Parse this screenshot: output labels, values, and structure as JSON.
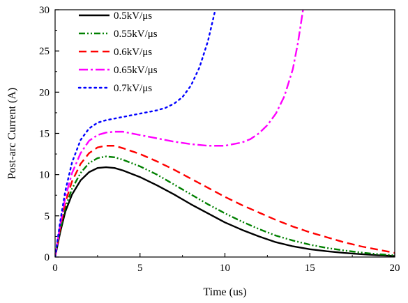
{
  "chart_data": {
    "type": "line",
    "title": "",
    "xlabel": "Time (us)",
    "ylabel": "Post-arc Current (A)",
    "xlim": [
      0,
      20
    ],
    "ylim": [
      0,
      30
    ],
    "x_ticks": [
      0,
      5,
      10,
      15,
      20
    ],
    "y_ticks": [
      0,
      5,
      10,
      15,
      20,
      25,
      30
    ],
    "grid": false,
    "legend_position": "top-left",
    "series": [
      {
        "name": "0.5kV/μs",
        "color": "#000000",
        "line_style": "solid",
        "points": [
          [
            0,
            0
          ],
          [
            0.3,
            3.0
          ],
          [
            0.6,
            5.5
          ],
          [
            1.0,
            7.6
          ],
          [
            1.5,
            9.3
          ],
          [
            2.0,
            10.3
          ],
          [
            2.5,
            10.8
          ],
          [
            3.0,
            10.9
          ],
          [
            3.5,
            10.8
          ],
          [
            4.0,
            10.5
          ],
          [
            5.0,
            9.7
          ],
          [
            6.0,
            8.7
          ],
          [
            7.0,
            7.6
          ],
          [
            8.0,
            6.4
          ],
          [
            9.0,
            5.3
          ],
          [
            10.0,
            4.2
          ],
          [
            11.0,
            3.3
          ],
          [
            12.0,
            2.5
          ],
          [
            13.0,
            1.8
          ],
          [
            14.0,
            1.3
          ],
          [
            15.0,
            0.95
          ],
          [
            16.0,
            0.7
          ],
          [
            17.0,
            0.5
          ],
          [
            18.0,
            0.35
          ],
          [
            19.0,
            0.22
          ],
          [
            20.0,
            0.12
          ]
        ]
      },
      {
        "name": "0.55kV/μs",
        "color": "#008000",
        "line_style": "dash-dot-dot",
        "points": [
          [
            0,
            0
          ],
          [
            0.3,
            3.3
          ],
          [
            0.6,
            6.0
          ],
          [
            1.0,
            8.3
          ],
          [
            1.5,
            10.2
          ],
          [
            2.0,
            11.4
          ],
          [
            2.5,
            12.0
          ],
          [
            3.0,
            12.2
          ],
          [
            3.5,
            12.1
          ],
          [
            4.0,
            11.8
          ],
          [
            5.0,
            11.0
          ],
          [
            6.0,
            10.0
          ],
          [
            7.0,
            8.8
          ],
          [
            8.0,
            7.6
          ],
          [
            9.0,
            6.4
          ],
          [
            10.0,
            5.3
          ],
          [
            11.0,
            4.3
          ],
          [
            12.0,
            3.4
          ],
          [
            13.0,
            2.6
          ],
          [
            14.0,
            2.0
          ],
          [
            15.0,
            1.5
          ],
          [
            16.0,
            1.1
          ],
          [
            17.0,
            0.8
          ],
          [
            18.0,
            0.55
          ],
          [
            19.0,
            0.35
          ],
          [
            20.0,
            0.2
          ]
        ]
      },
      {
        "name": "0.6kV/μs",
        "color": "#ff0000",
        "line_style": "dash",
        "points": [
          [
            0,
            0
          ],
          [
            0.3,
            3.6
          ],
          [
            0.6,
            6.6
          ],
          [
            1.0,
            9.2
          ],
          [
            1.5,
            11.3
          ],
          [
            2.0,
            12.6
          ],
          [
            2.5,
            13.3
          ],
          [
            3.0,
            13.5
          ],
          [
            3.5,
            13.5
          ],
          [
            4.0,
            13.2
          ],
          [
            5.0,
            12.5
          ],
          [
            6.0,
            11.6
          ],
          [
            7.0,
            10.6
          ],
          [
            8.0,
            9.5
          ],
          [
            9.0,
            8.4
          ],
          [
            10.0,
            7.3
          ],
          [
            11.0,
            6.3
          ],
          [
            12.0,
            5.4
          ],
          [
            13.0,
            4.5
          ],
          [
            14.0,
            3.7
          ],
          [
            15.0,
            3.0
          ],
          [
            16.0,
            2.4
          ],
          [
            17.0,
            1.8
          ],
          [
            18.0,
            1.3
          ],
          [
            19.0,
            0.9
          ],
          [
            20.0,
            0.5
          ]
        ]
      },
      {
        "name": "0.65kV/μs",
        "color": "#ff00ff",
        "line_style": "dash-dot",
        "points": [
          [
            0,
            0
          ],
          [
            0.3,
            3.9
          ],
          [
            0.6,
            7.2
          ],
          [
            1.0,
            10.2
          ],
          [
            1.5,
            12.6
          ],
          [
            2.0,
            14.1
          ],
          [
            2.5,
            14.8
          ],
          [
            3.0,
            15.1
          ],
          [
            3.5,
            15.2
          ],
          [
            4.0,
            15.2
          ],
          [
            5.0,
            14.8
          ],
          [
            6.0,
            14.4
          ],
          [
            7.0,
            14.0
          ],
          [
            8.0,
            13.7
          ],
          [
            9.0,
            13.5
          ],
          [
            10.0,
            13.5
          ],
          [
            11.0,
            13.9
          ],
          [
            11.5,
            14.3
          ],
          [
            12.0,
            15.0
          ],
          [
            12.5,
            16.0
          ],
          [
            13.0,
            17.4
          ],
          [
            13.5,
            19.5
          ],
          [
            14.0,
            22.8
          ],
          [
            14.3,
            26.0
          ],
          [
            14.6,
            30.0
          ]
        ]
      },
      {
        "name": "0.7kV/μs",
        "color": "#0000ff",
        "line_style": "dot",
        "points": [
          [
            0,
            0
          ],
          [
            0.3,
            4.3
          ],
          [
            0.6,
            8.0
          ],
          [
            1.0,
            11.5
          ],
          [
            1.5,
            14.2
          ],
          [
            2.0,
            15.6
          ],
          [
            2.5,
            16.3
          ],
          [
            3.0,
            16.6
          ],
          [
            4.0,
            17.0
          ],
          [
            5.0,
            17.4
          ],
          [
            6.0,
            17.8
          ],
          [
            6.5,
            18.1
          ],
          [
            7.0,
            18.6
          ],
          [
            7.5,
            19.4
          ],
          [
            8.0,
            20.8
          ],
          [
            8.5,
            23.0
          ],
          [
            9.0,
            26.2
          ],
          [
            9.4,
            29.7
          ]
        ]
      }
    ]
  }
}
